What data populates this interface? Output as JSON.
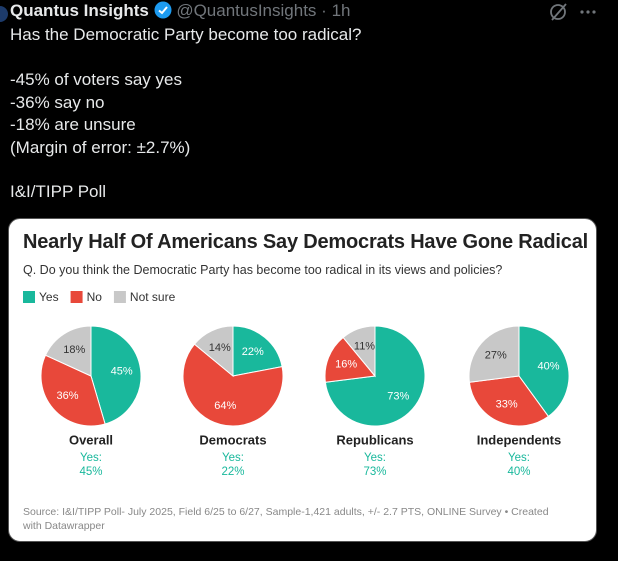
{
  "tweet": {
    "name": "Quantus Insights",
    "handle": "@QuantusInsights",
    "separator": "·",
    "time": "1h",
    "text": [
      "Has the Democratic Party become too radical?",
      "-45% of voters say yes",
      "-36% say no",
      "-18% are unsure",
      "(Margin of error: ±2.7%)",
      "I&I/TIPP Poll"
    ]
  },
  "chart_data": {
    "type": "pie",
    "title": "Nearly Half Of Americans Say Democrats Have Gone Radical",
    "subtitle": "Q. Do you think the Democratic Party has become too radical in its views and policies?",
    "categories": [
      "Yes",
      "No",
      "Not sure"
    ],
    "colors": [
      "#19b89c",
      "#e8483a",
      "#c8c8c8"
    ],
    "summary_prefix": "Yes:",
    "series": [
      {
        "name": "Overall",
        "values": [
          45,
          36,
          18
        ],
        "value_labels": [
          "45%",
          "36%",
          "18%"
        ]
      },
      {
        "name": "Democrats",
        "values": [
          22,
          64,
          14
        ],
        "value_labels": [
          "22%",
          "64%",
          "14%"
        ]
      },
      {
        "name": "Republicans",
        "values": [
          73,
          16,
          11
        ],
        "value_labels": [
          "73%",
          "16%",
          "11%"
        ]
      },
      {
        "name": "Independents",
        "values": [
          40,
          33,
          27
        ],
        "value_labels": [
          "40%",
          "33%",
          "27%"
        ]
      }
    ],
    "source": "Source: I&I/TIPP Poll- July 2025, Field 6/25 to 6/27, Sample-1,421 adults, +/- 2.7 PTS, ONLINE Survey • Created with Datawrapper"
  }
}
